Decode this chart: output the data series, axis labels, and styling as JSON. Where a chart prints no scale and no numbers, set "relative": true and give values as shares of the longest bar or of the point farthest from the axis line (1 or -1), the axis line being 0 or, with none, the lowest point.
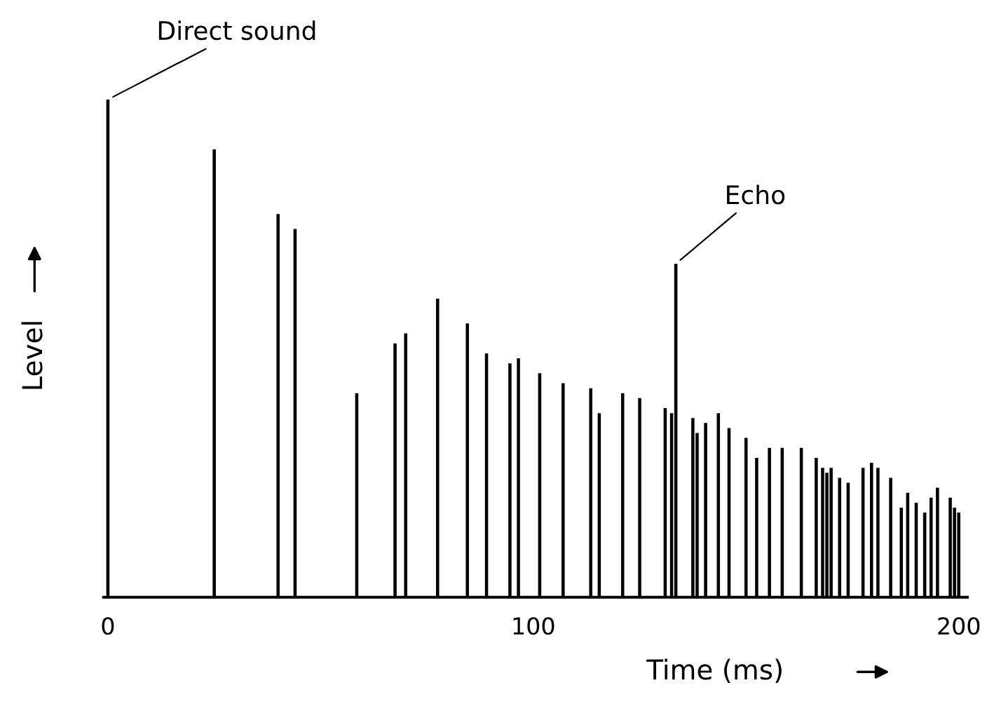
{
  "chart_data": {
    "type": "bar",
    "relative": true,
    "xlabel": "Time (ms)",
    "ylabel": "Level",
    "x": [
      0,
      25,
      40,
      44,
      58.5,
      67.5,
      70,
      77.5,
      84.5,
      89,
      94.5,
      96.5,
      101.5,
      107,
      113.5,
      115.5,
      121,
      125,
      131,
      132.5,
      133.5,
      137.5,
      138.5,
      140.5,
      143.5,
      146,
      150,
      152.5,
      155.5,
      158.5,
      163,
      166.5,
      168,
      169,
      170,
      172,
      174,
      177.5,
      179.5,
      181,
      184,
      186.5,
      188,
      190,
      192,
      193.5,
      195,
      198,
      199,
      200
    ],
    "values": [
      1.0,
      0.9,
      0.77,
      0.74,
      0.41,
      0.51,
      0.53,
      0.6,
      0.55,
      0.49,
      0.47,
      0.48,
      0.45,
      0.43,
      0.42,
      0.37,
      0.41,
      0.4,
      0.38,
      0.37,
      0.67,
      0.36,
      0.33,
      0.35,
      0.37,
      0.34,
      0.32,
      0.28,
      0.3,
      0.3,
      0.3,
      0.28,
      0.26,
      0.25,
      0.26,
      0.24,
      0.23,
      0.26,
      0.27,
      0.26,
      0.24,
      0.18,
      0.21,
      0.19,
      0.17,
      0.2,
      0.22,
      0.2,
      0.18,
      0.17
    ],
    "color": "#000000",
    "xlim": [
      -1,
      202
    ],
    "xticks": [
      0,
      100,
      200
    ],
    "grid": false,
    "legend": false,
    "annotations": [
      {
        "text": "Direct sound",
        "x": 0,
        "y": 1.0
      },
      {
        "text": "Echo",
        "x": 133.5,
        "y": 0.67
      }
    ]
  }
}
